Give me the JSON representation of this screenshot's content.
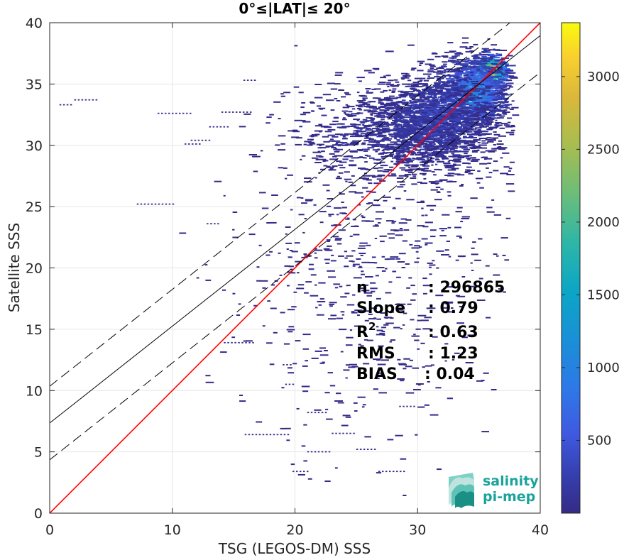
{
  "chart_data": {
    "type": "heatmap",
    "title": "0°≤|LAT|≤ 20°",
    "xlabel": "TSG (LEGOS-DM) SSS",
    "ylabel": "Satellite SSS",
    "xlim": [
      0,
      40
    ],
    "ylim": [
      0,
      40
    ],
    "x_ticks": [
      "0",
      "10",
      "20",
      "30",
      "40"
    ],
    "y_ticks": [
      "0",
      "5",
      "10",
      "15",
      "20",
      "25",
      "30",
      "35",
      "40"
    ],
    "grid": true,
    "colormap": "parula",
    "colorbar": {
      "min": 0,
      "max": 3370,
      "ticks": [
        500,
        1000,
        1500,
        2000,
        2500,
        3000
      ],
      "tick_labels": [
        "500",
        "1000",
        "1500",
        "2000",
        "2500",
        "3000"
      ]
    },
    "lines": [
      {
        "role": "identity",
        "intercept": 0,
        "slope": 1,
        "color": "#ff0000",
        "style": "solid"
      },
      {
        "role": "regression",
        "intercept": 7.35,
        "slope": 0.79,
        "color": "#000000",
        "style": "solid"
      },
      {
        "role": "regression-upper",
        "intercept": 10.35,
        "slope": 0.79,
        "color": "#000000",
        "style": "dashed"
      },
      {
        "role": "regression-lower",
        "intercept": 4.35,
        "slope": 0.79,
        "color": "#000000",
        "style": "dashed"
      }
    ],
    "stats": [
      {
        "label": "n",
        "value": ": 296865"
      },
      {
        "label": "Slope",
        "value": ": 0.79"
      },
      {
        "label": "R2",
        "value": ": 0.63"
      },
      {
        "label": "RMS",
        "value": ": 1.23"
      },
      {
        "label": "BIAS",
        "value": ": 0.04"
      }
    ],
    "density_clusters": [
      {
        "cx": 36.0,
        "cy": 36.0,
        "sx": 0.75,
        "sy": 0.75,
        "n": 500,
        "peak": 3300
      },
      {
        "cx": 34.5,
        "cy": 34.3,
        "sx": 1.5,
        "sy": 1.5,
        "n": 1100,
        "peak": 1300
      },
      {
        "cx": 31.5,
        "cy": 32.0,
        "sx": 2.4,
        "sy": 1.9,
        "n": 1500,
        "peak": 450
      },
      {
        "cx": 28.0,
        "cy": 31.0,
        "sx": 4.0,
        "sy": 2.0,
        "n": 900,
        "peak": 150
      },
      {
        "cx": 27.0,
        "cy": 22.0,
        "sx": 5.5,
        "sy": 4.5,
        "n": 450,
        "peak": 40
      },
      {
        "cx": 25.0,
        "cy": 12.0,
        "sx": 5.0,
        "sy": 4.5,
        "n": 160,
        "peak": 20
      }
    ],
    "isolated_segments": [
      {
        "x0": 0.8,
        "x1": 1.8,
        "y": 33.3
      },
      {
        "x0": 2.0,
        "x1": 4.0,
        "y": 33.7
      },
      {
        "x0": 7.1,
        "x1": 10.0,
        "y": 25.2
      },
      {
        "x0": 8.8,
        "x1": 11.5,
        "y": 32.6
      },
      {
        "x0": 11.5,
        "x1": 13.0,
        "y": 30.4
      },
      {
        "x0": 11.0,
        "x1": 12.2,
        "y": 30.1
      },
      {
        "x0": 13.0,
        "x1": 14.5,
        "y": 31.5
      },
      {
        "x0": 14.0,
        "x1": 16.5,
        "y": 32.7
      },
      {
        "x0": 15.8,
        "x1": 16.8,
        "y": 35.3
      },
      {
        "x0": 12.8,
        "x1": 13.8,
        "y": 23.6
      },
      {
        "x0": 14.2,
        "x1": 16.6,
        "y": 13.9
      },
      {
        "x0": 15.9,
        "x1": 19.5,
        "y": 6.4
      },
      {
        "x0": 19.8,
        "x1": 21.2,
        "y": 3.4
      },
      {
        "x0": 21.0,
        "x1": 22.5,
        "y": 8.2
      },
      {
        "x0": 21.0,
        "x1": 23.0,
        "y": 5.0
      },
      {
        "x0": 26.8,
        "x1": 29.0,
        "y": 3.4
      },
      {
        "x0": 25.0,
        "x1": 26.5,
        "y": 5.2
      },
      {
        "x0": 23.0,
        "x1": 25.0,
        "y": 6.5
      },
      {
        "x0": 28.5,
        "x1": 29.8,
        "y": 8.7
      },
      {
        "x0": 19.2,
        "x1": 19.9,
        "y": 10.5
      },
      {
        "x0": 19.0,
        "x1": 19.8,
        "y": 12.1
      }
    ]
  },
  "logo": {
    "line1": "salinity",
    "line2": "pi-mep",
    "color": "#1aa39a"
  }
}
